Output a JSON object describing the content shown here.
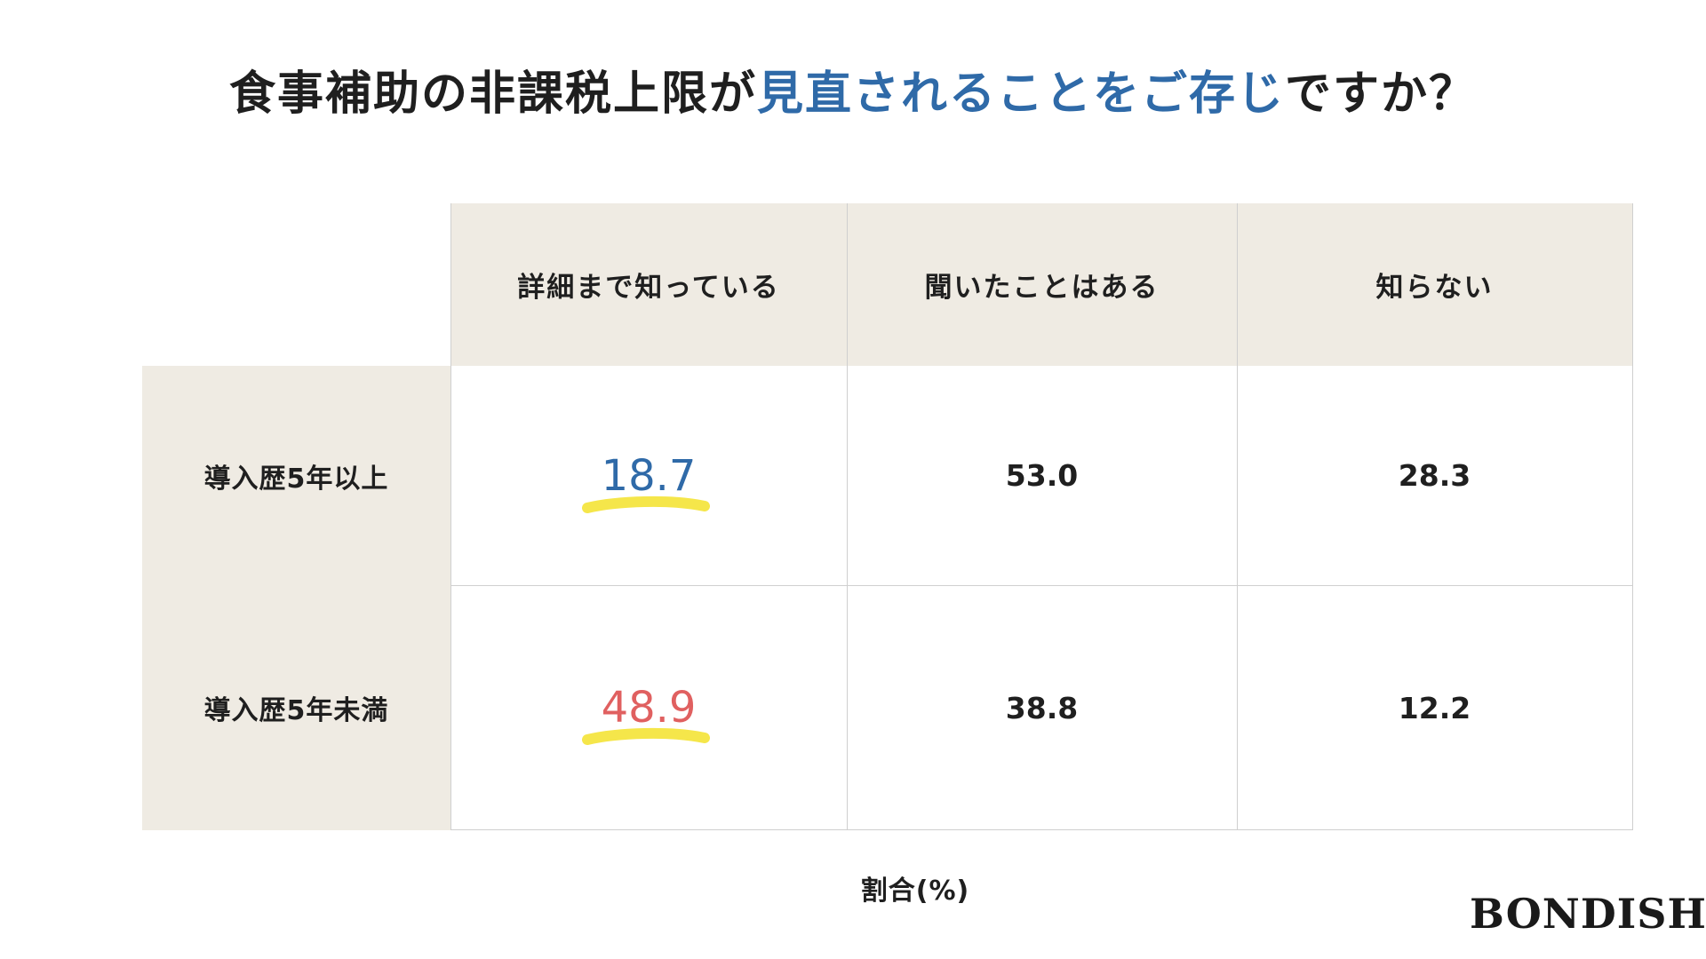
{
  "title": {
    "part1": "食事補助の非課税上限が",
    "accent": "見直されることをご存じ",
    "part2": "ですか？",
    "accent_color": "#2f6aa8"
  },
  "chart_data": {
    "type": "table",
    "columns": [
      "詳細まで知っている",
      "聞いたことはある",
      "知らない"
    ],
    "rows": [
      {
        "label": "導入歴5年以上",
        "values": [
          "18.7",
          "53.0",
          "28.3"
        ]
      },
      {
        "label": "導入歴5年未満",
        "values": [
          "48.9",
          "38.8",
          "12.2"
        ]
      }
    ],
    "highlight_colors": [
      "#2f6aa8",
      "#e06060"
    ],
    "marker_color": "#f5e64a",
    "unit_label": "割合(%)"
  },
  "brand": "BONDISH"
}
